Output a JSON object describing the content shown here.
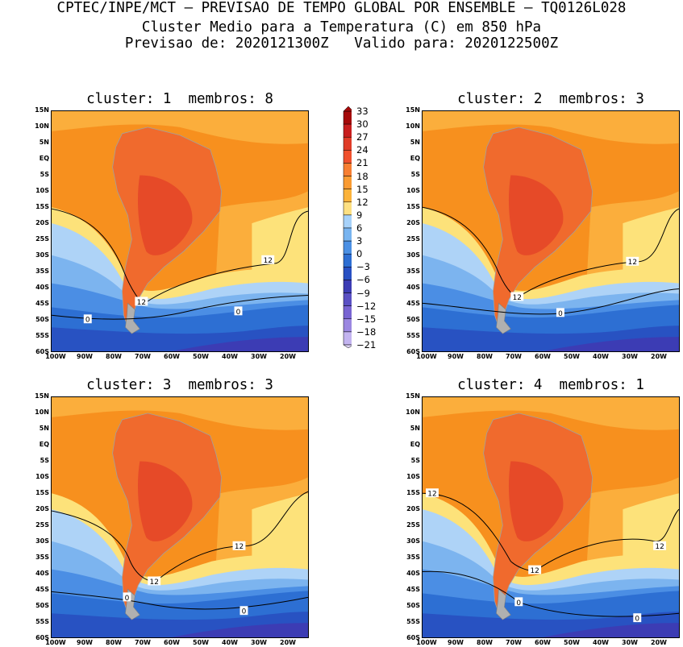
{
  "header": {
    "line1": "CPTEC/INPE/MCT – PREVISAO DE TEMPO GLOBAL POR ENSEMBLE – TQ0126L028",
    "line2": "Cluster Medio para a Temperatura (C) em 850 hPa",
    "line3": "Previsao de: 2020121300Z   Valido para: 2020122500Z"
  },
  "panels": [
    {
      "title": "cluster: 1  membros: 8",
      "labels": [
        "12",
        "12",
        "0",
        "0"
      ]
    },
    {
      "title": "cluster: 2  membros: 3",
      "labels": [
        "12",
        "12",
        "0"
      ]
    },
    {
      "title": "cluster: 3  membros: 3",
      "labels": [
        "12",
        "12",
        "0",
        "0"
      ]
    },
    {
      "title": "cluster: 4  membros: 1",
      "labels": [
        "12",
        "12",
        "12",
        "0",
        "0"
      ]
    }
  ],
  "y_ticks": [
    "15N",
    "10N",
    "5N",
    "EQ",
    "5S",
    "10S",
    "15S",
    "20S",
    "25S",
    "30S",
    "35S",
    "40S",
    "45S",
    "50S",
    "55S",
    "60S"
  ],
  "x_ticks": [
    "100W",
    "90W",
    "80W",
    "70W",
    "60W",
    "50W",
    "40W",
    "30W",
    "20W"
  ],
  "colorbar": {
    "labels": [
      "33",
      "30",
      "27",
      "24",
      "21",
      "18",
      "15",
      "12",
      "9",
      "6",
      "3",
      "0",
      "−3",
      "−6",
      "−9",
      "−12",
      "−15",
      "−18",
      "−21"
    ],
    "colors": [
      "#a50a0a",
      "#c81e1e",
      "#e03c28",
      "#f0502d",
      "#f77f32",
      "#fa9b32",
      "#fcb33a",
      "#fde082",
      "#a7d2fa",
      "#78b4f0",
      "#4b90e4",
      "#2d6ed2",
      "#2850c3",
      "#3c3cb4",
      "#5a50c3",
      "#7864d2",
      "#9b87e1",
      "#c3b4f0"
    ]
  }
}
